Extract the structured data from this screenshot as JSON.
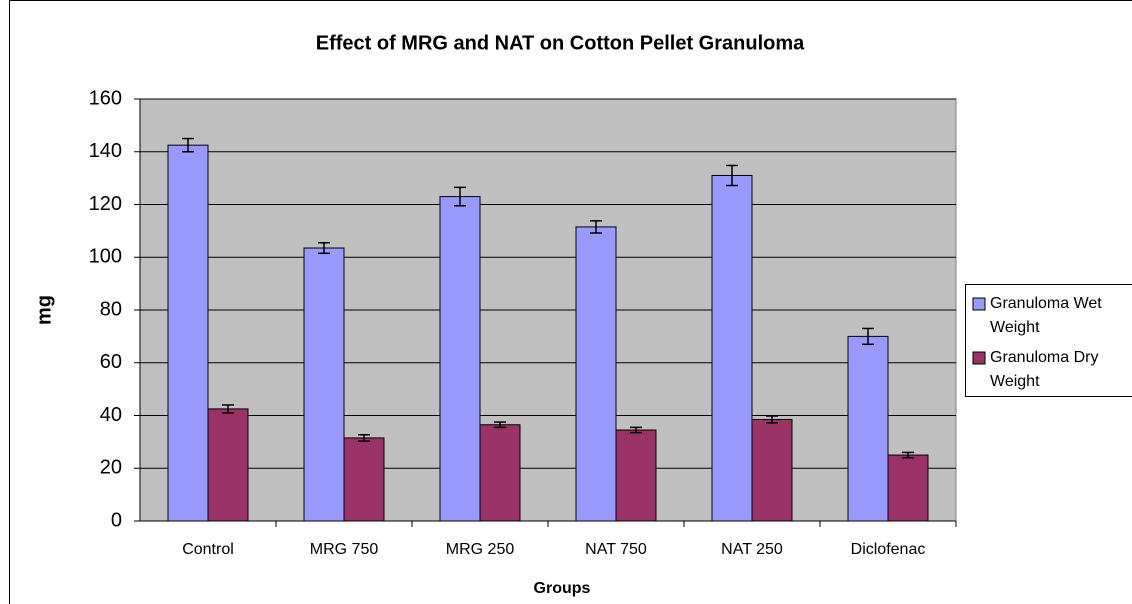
{
  "chart_data": {
    "type": "bar",
    "title": "Effect of MRG and NAT on Cotton Pellet Granuloma",
    "x_label": "Groups",
    "y_label": "mg",
    "categories": [
      "Control",
      "MRG 750",
      "MRG 250",
      "NAT 750",
      "NAT 250",
      "Diclofenac"
    ],
    "series": [
      {
        "name": "Granuloma Wet Weight",
        "color": "#9999ff",
        "values": [
          142.5,
          103.5,
          123,
          111.5,
          131,
          70
        ],
        "errors": [
          2.5,
          2,
          3.5,
          2.3,
          3.8,
          3
        ]
      },
      {
        "name": "Granuloma Dry Weight",
        "color": "#993366",
        "values": [
          42.5,
          31.5,
          36.5,
          34.5,
          38.5,
          25
        ],
        "errors": [
          1.5,
          1.2,
          1,
          1,
          1.3,
          1
        ]
      }
    ],
    "ylim": [
      0,
      160
    ],
    "yticks": [
      0,
      20,
      40,
      60,
      80,
      100,
      120,
      140,
      160
    ],
    "grid": true,
    "legend": "right"
  }
}
